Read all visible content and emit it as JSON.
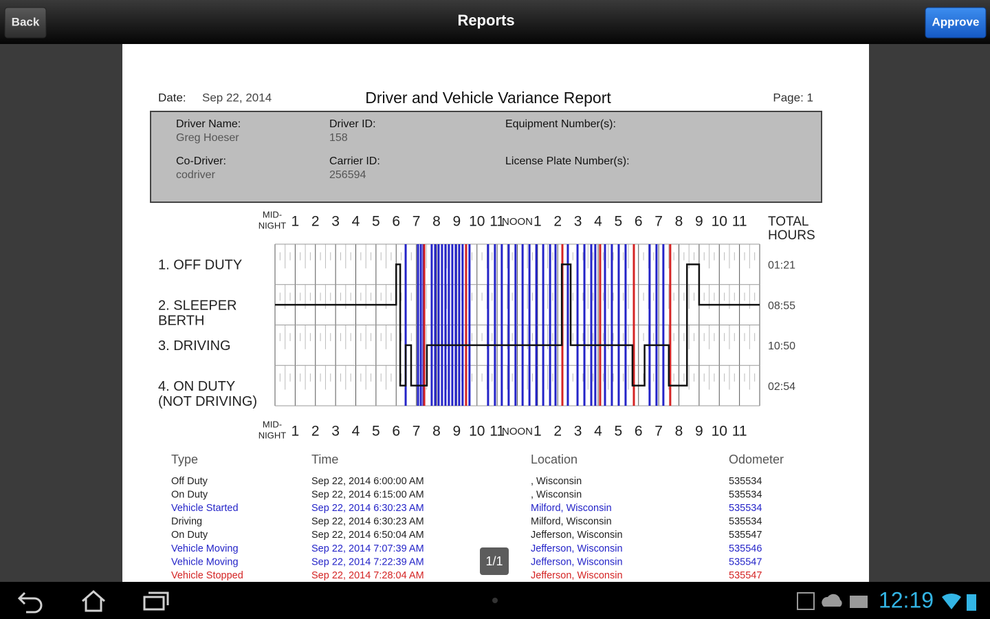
{
  "app_bar": {
    "back": "Back",
    "title": "Reports",
    "approve": "Approve"
  },
  "report": {
    "date_label": "Date:",
    "date": "Sep 22, 2014",
    "title": "Driver and Vehicle Variance Report",
    "page": "Page: 1",
    "info": [
      {
        "label": "Driver Name:",
        "value": "Greg Hoeser"
      },
      {
        "label": "Driver ID:",
        "value": "158"
      },
      {
        "label": "Equipment Number(s):"
      },
      {
        "label": "Co-Driver:",
        "value": "codriver"
      },
      {
        "label": "Carrier ID:",
        "value": "256594"
      },
      {
        "label": "License Plate Number(s):"
      }
    ],
    "log_graph": {
      "midnight": [
        "MID-",
        "NIGHT"
      ],
      "hours": [
        1,
        2,
        3,
        4,
        5,
        6,
        7,
        8,
        9,
        10,
        11,
        "NOON",
        1,
        2,
        3,
        4,
        5,
        6,
        7,
        8,
        9,
        10,
        11
      ],
      "total_header": [
        "TOTAL",
        "HOURS"
      ],
      "statuses": [
        {
          "label": [
            "1. OFF DUTY"
          ],
          "total": "01:21"
        },
        {
          "label": [
            "2. SLEEPER",
            "BERTH"
          ],
          "total": "08:55"
        },
        {
          "label": [
            "3. DRIVING"
          ],
          "total": "10:50"
        },
        {
          "label": [
            "4. ON DUTY",
            "(NOT DRIVING)"
          ],
          "total": "02:54"
        }
      ],
      "duty_line": {
        "hours": [
          0,
          6.0,
          6.2,
          6.47,
          6.74,
          7.52,
          14.2,
          14.64,
          17.7,
          18.3,
          19.5,
          20.4,
          21.0,
          24
        ],
        "status": [
          2,
          1,
          4,
          3,
          4,
          3,
          1,
          3,
          4,
          3,
          4,
          1,
          2,
          2
        ]
      },
      "event_lines": {
        "blue": {
          "color": "#2424c8",
          "hours": [
            6.47,
            7.08,
            7.22,
            7.35,
            7.76,
            7.93,
            8.1,
            8.27,
            8.44,
            8.61,
            8.78,
            8.95,
            9.12,
            9.29,
            9.63,
            10.55,
            10.89,
            11.23,
            11.57,
            11.91,
            12.26,
            12.6,
            12.94,
            13.28,
            13.62,
            13.89,
            14.5,
            14.98,
            15.32,
            15.66,
            15.86,
            16.34,
            16.68,
            17.02,
            17.36,
            18.55,
            18.89,
            19.23
          ]
        },
        "red": {
          "color": "#d42424",
          "hours": [
            7.39,
            9.46,
            14.23,
            16.1,
            17.77,
            19.57
          ]
        }
      }
    },
    "events_table": {
      "headers": [
        "Type",
        "Time",
        "Location",
        "Odometer"
      ],
      "rows": [
        {
          "type": "Off Duty",
          "time": "Sep 22, 2014 6:00:00 AM",
          "location": ", Wisconsin",
          "odometer": "535534",
          "color": "#222222"
        },
        {
          "type": "On Duty",
          "time": "Sep 22, 2014 6:15:00 AM",
          "location": ", Wisconsin",
          "odometer": "535534",
          "color": "#222222"
        },
        {
          "type": "Vehicle Started",
          "time": "Sep 22, 2014 6:30:23 AM",
          "location": "Milford, Wisconsin",
          "odometer": "535534",
          "color": "#2424c8"
        },
        {
          "type": "Driving",
          "time": "Sep 22, 2014 6:30:23 AM",
          "location": "Milford, Wisconsin",
          "odometer": "535534",
          "color": "#222222"
        },
        {
          "type": "On Duty",
          "time": "Sep 22, 2014 6:50:04 AM",
          "location": "Jefferson, Wisconsin",
          "odometer": "535547",
          "color": "#222222"
        },
        {
          "type": "Vehicle Moving",
          "time": "Sep 22, 2014 7:07:39 AM",
          "location": "Jefferson, Wisconsin",
          "odometer": "535546",
          "color": "#2424c8"
        },
        {
          "type": "Vehicle Moving",
          "time": "Sep 22, 2014 7:22:39 AM",
          "location": "Jefferson, Wisconsin",
          "odometer": "535547",
          "color": "#2424c8"
        },
        {
          "type": "Vehicle Stopped",
          "time": "Sep 22, 2014 7:28:04 AM",
          "location": "Jefferson, Wisconsin",
          "odometer": "535547",
          "color": "#d42424"
        }
      ]
    },
    "pager": "1/1"
  },
  "status_bar": {
    "time": "12:19"
  }
}
